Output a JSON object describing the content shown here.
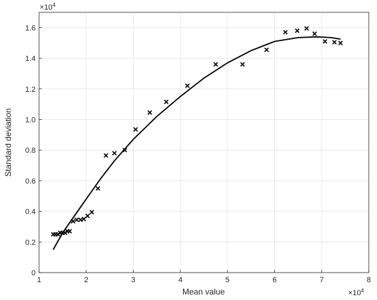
{
  "chart_data": {
    "type": "scatter",
    "title": "",
    "xlabel": "Mean value",
    "ylabel": "Standard deviation",
    "xlim": [
      1,
      8
    ],
    "ylim": [
      0,
      1.7
    ],
    "x_ticks": [
      1,
      2,
      3,
      4,
      5,
      6,
      7,
      8
    ],
    "y_ticks": [
      0,
      0.2,
      0.4,
      0.6,
      0.8,
      1.0,
      1.2,
      1.4,
      1.6
    ],
    "x_tick_labels": [
      "1",
      "2",
      "3",
      "4",
      "5",
      "6",
      "7",
      "8"
    ],
    "y_tick_labels": [
      "0",
      "0.2",
      "0.4",
      "0.6",
      "0.8",
      "1.0",
      "1.2",
      "1.4",
      "1.6"
    ],
    "x_exponent": {
      "base": "×10",
      "power": "4"
    },
    "y_exponent": {
      "base": "×10",
      "power": "4"
    },
    "grid": true,
    "marker_color": "#000000",
    "line_color": "#000000",
    "series": [
      {
        "kind": "scatter",
        "marker": "x",
        "x": [
          1.3,
          1.35,
          1.4,
          1.45,
          1.5,
          1.55,
          1.6,
          1.65,
          1.72,
          1.8,
          1.88,
          1.95,
          2.03,
          2.12,
          2.25,
          2.42,
          2.6,
          2.82,
          3.05,
          3.35,
          3.7,
          4.15,
          4.75,
          5.32,
          5.83,
          6.23,
          6.48,
          6.68,
          6.85,
          7.07,
          7.27,
          7.4
        ],
        "y": [
          0.25,
          0.25,
          0.25,
          0.26,
          0.26,
          0.26,
          0.27,
          0.27,
          0.335,
          0.345,
          0.345,
          0.35,
          0.37,
          0.395,
          0.55,
          0.765,
          0.78,
          0.8,
          0.935,
          1.045,
          1.115,
          1.22,
          1.36,
          1.36,
          1.455,
          1.57,
          1.58,
          1.595,
          1.56,
          1.51,
          1.505,
          1.5
        ]
      },
      {
        "kind": "line",
        "x": [
          1.3,
          1.5,
          1.75,
          2.0,
          2.3,
          2.6,
          3.0,
          3.5,
          4.0,
          4.5,
          5.0,
          5.5,
          6.0,
          6.5,
          6.9,
          7.2,
          7.4
        ],
        "y": [
          0.15,
          0.26,
          0.37,
          0.48,
          0.61,
          0.73,
          0.87,
          1.02,
          1.15,
          1.27,
          1.37,
          1.45,
          1.51,
          1.535,
          1.54,
          1.535,
          1.525
        ]
      }
    ]
  }
}
